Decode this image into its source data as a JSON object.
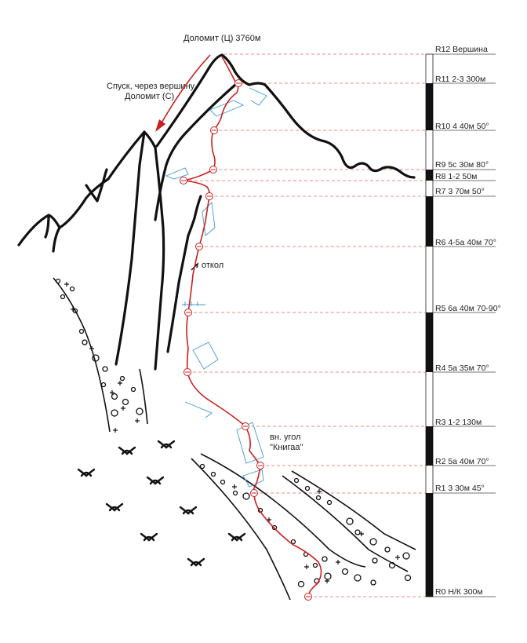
{
  "peak_label": "Доломит (Ц) 3760м",
  "descent_label_line1": "Спуск, через вершину",
  "descent_label_line2": "Доломит (С)",
  "annotations": {
    "flake": "откол",
    "corner_line1": "вн. угол",
    "corner_line2": "\"Книгаа\""
  },
  "pitches": [
    {
      "id": "R12",
      "text": "R12  Вершина"
    },
    {
      "id": "R11",
      "text": "R11  2-3 300м"
    },
    {
      "id": "R10",
      "text": "R10  4 40м 50°"
    },
    {
      "id": "R9",
      "text": "R9  5с 30м 80°"
    },
    {
      "id": "R8",
      "text": "R8  1-2 50м"
    },
    {
      "id": "R7",
      "text": "R7  3 70м 50°"
    },
    {
      "id": "R6",
      "text": "R6  4-5а 40м 70°"
    },
    {
      "id": "R5",
      "text": "R5  6а 40м 70-90°"
    },
    {
      "id": "R4",
      "text": "R4  5а 35м 70°"
    },
    {
      "id": "R3",
      "text": "R3  1-2 130м"
    },
    {
      "id": "R2",
      "text": "R2  5а 40м 70°"
    },
    {
      "id": "R1",
      "text": "R1  3 30м 45°"
    },
    {
      "id": "R0",
      "text": "R0  Н/К 300м"
    }
  ],
  "colors": {
    "route": "#c8201e",
    "guide": "#e98c80",
    "rock": "#111111",
    "feature": "#3f9ad6"
  }
}
